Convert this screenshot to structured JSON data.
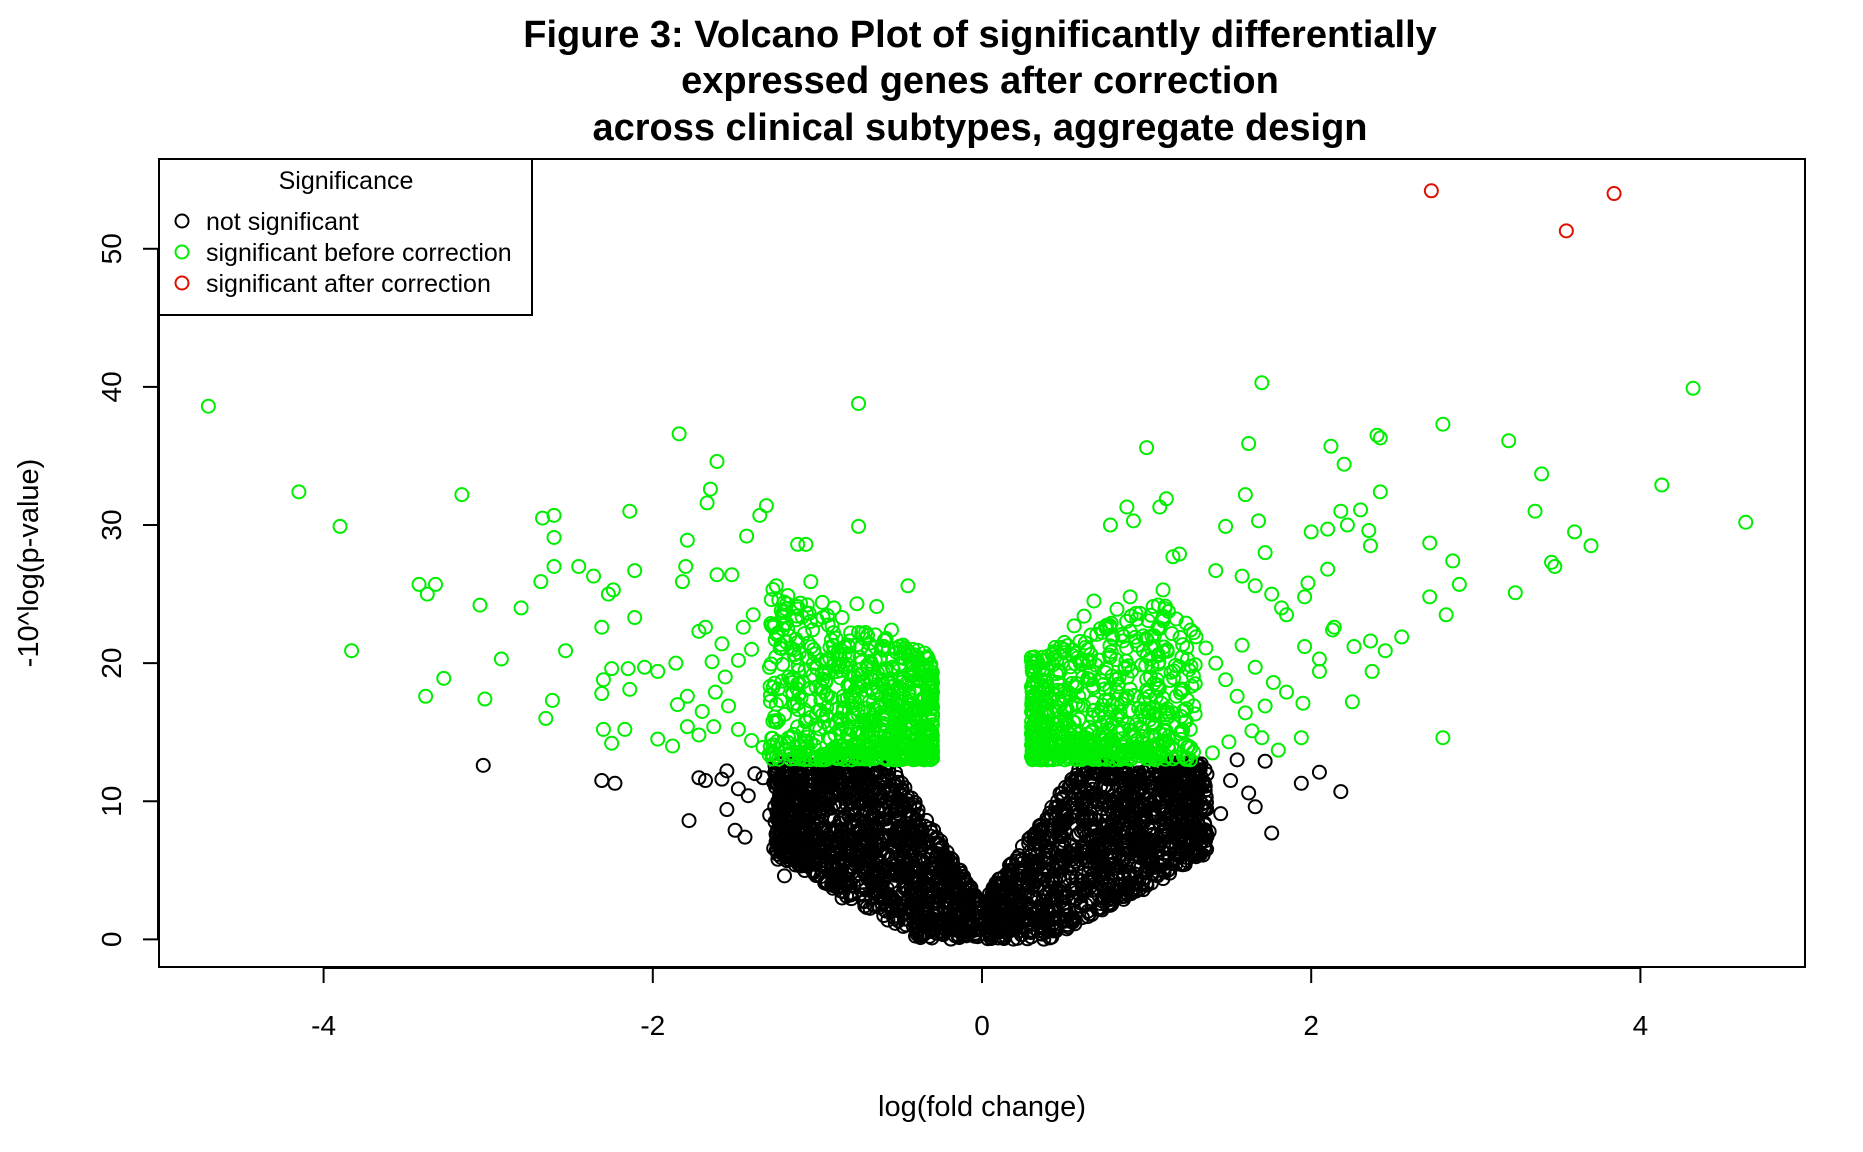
{
  "chart_data": {
    "type": "scatter",
    "title": [
      "Figure 3: Volcano Plot of significantly differentially",
      "expressed genes after correction",
      "across clinical subtypes, aggregate design"
    ],
    "xlabel": "log(fold change)",
    "ylabel": "-10^log(p-value)",
    "xlim": [
      -5.0,
      5.0
    ],
    "ylim": [
      -2.0,
      56.5
    ],
    "xticks": [
      -4,
      -2,
      0,
      2,
      4
    ],
    "yticks": [
      0,
      10,
      20,
      30,
      40,
      50
    ],
    "grid": false,
    "legend": {
      "title": "Significance",
      "position": "top-left",
      "entries": [
        {
          "label": "not significant",
          "color": "#000000"
        },
        {
          "label": "significant before correction",
          "color": "#00ee00"
        },
        {
          "label": "significant after correction",
          "color": "#dd1100"
        }
      ]
    },
    "series": [
      {
        "name": "significant after correction",
        "color": "#dd1100",
        "points": [
          [
            2.73,
            54.2
          ],
          [
            3.84,
            54.0
          ],
          [
            3.55,
            51.3
          ]
        ]
      },
      {
        "name": "significant before correction",
        "color": "#00ee00",
        "points": [
          [
            -4.7,
            38.6
          ],
          [
            -4.15,
            32.4
          ],
          [
            -3.9,
            29.9
          ],
          [
            -3.83,
            20.9
          ],
          [
            -3.42,
            25.7
          ],
          [
            -3.37,
            25.0
          ],
          [
            -3.38,
            17.6
          ],
          [
            -3.32,
            25.7
          ],
          [
            -3.27,
            18.9
          ],
          [
            -3.16,
            32.2
          ],
          [
            -3.05,
            24.2
          ],
          [
            -3.02,
            17.4
          ],
          [
            -2.92,
            20.3
          ],
          [
            -2.8,
            24.0
          ],
          [
            -2.67,
            30.5
          ],
          [
            -2.6,
            30.7
          ],
          [
            -2.6,
            29.1
          ],
          [
            -2.6,
            27.0
          ],
          [
            -2.68,
            25.9
          ],
          [
            -2.65,
            16.0
          ],
          [
            -2.61,
            17.3
          ],
          [
            -2.53,
            20.9
          ],
          [
            -2.45,
            27.0
          ],
          [
            -2.36,
            26.3
          ],
          [
            -2.31,
            22.6
          ],
          [
            -2.27,
            25.0
          ],
          [
            -2.24,
            25.3
          ],
          [
            -2.3,
            18.8
          ],
          [
            -2.31,
            17.8
          ],
          [
            -2.25,
            19.6
          ],
          [
            -2.3,
            15.2
          ],
          [
            -2.25,
            14.2
          ],
          [
            -2.17,
            15.2
          ],
          [
            -2.15,
            19.6
          ],
          [
            -2.14,
            18.1
          ],
          [
            -2.14,
            31.0
          ],
          [
            -2.11,
            26.7
          ],
          [
            -2.11,
            23.3
          ],
          [
            -2.05,
            19.7
          ],
          [
            -1.97,
            19.4
          ],
          [
            -1.97,
            14.5
          ],
          [
            -1.88,
            14.0
          ],
          [
            -1.86,
            20.0
          ],
          [
            -1.85,
            17.0
          ],
          [
            -1.84,
            36.6
          ],
          [
            -1.82,
            25.9
          ],
          [
            -1.8,
            27.0
          ],
          [
            -1.79,
            28.9
          ],
          [
            -1.79,
            17.6
          ],
          [
            -1.79,
            15.4
          ],
          [
            -1.72,
            14.8
          ],
          [
            -1.72,
            22.3
          ],
          [
            -1.68,
            22.6
          ],
          [
            -1.67,
            31.6
          ],
          [
            -1.65,
            32.6
          ],
          [
            -1.61,
            34.6
          ],
          [
            -1.61,
            26.4
          ],
          [
            -1.58,
            21.4
          ],
          [
            -1.52,
            26.4
          ],
          [
            -1.43,
            29.2
          ],
          [
            -1.35,
            30.7
          ],
          [
            -1.31,
            31.4
          ],
          [
            -1.25,
            25.6
          ],
          [
            -1.12,
            28.6
          ],
          [
            -1.07,
            28.6
          ],
          [
            -1.04,
            25.9
          ],
          [
            -0.75,
            38.8
          ],
          [
            -0.75,
            29.9
          ],
          [
            -0.45,
            25.6
          ],
          [
            1.0,
            35.6
          ],
          [
            1.12,
            31.9
          ],
          [
            1.08,
            31.3
          ],
          [
            0.88,
            31.3
          ],
          [
            0.92,
            30.3
          ],
          [
            0.78,
            30.0
          ],
          [
            1.16,
            27.7
          ],
          [
            1.2,
            27.9
          ],
          [
            1.42,
            26.7
          ],
          [
            1.6,
            32.2
          ],
          [
            1.62,
            35.9
          ],
          [
            1.7,
            40.3
          ],
          [
            1.68,
            30.3
          ],
          [
            1.72,
            28.0
          ],
          [
            1.48,
            29.9
          ],
          [
            1.58,
            26.3
          ],
          [
            1.66,
            25.6
          ],
          [
            1.76,
            25.0
          ],
          [
            1.82,
            24.0
          ],
          [
            1.85,
            23.5
          ],
          [
            1.96,
            24.8
          ],
          [
            1.98,
            25.8
          ],
          [
            2.0,
            29.5
          ],
          [
            2.1,
            29.7
          ],
          [
            2.12,
            35.7
          ],
          [
            2.18,
            31.0
          ],
          [
            2.2,
            34.4
          ],
          [
            2.22,
            30.0
          ],
          [
            2.3,
            31.1
          ],
          [
            2.35,
            29.6
          ],
          [
            2.36,
            28.5
          ],
          [
            2.4,
            36.5
          ],
          [
            2.42,
            36.3
          ],
          [
            2.42,
            32.4
          ],
          [
            2.36,
            21.6
          ],
          [
            2.37,
            19.4
          ],
          [
            2.45,
            20.9
          ],
          [
            2.55,
            21.9
          ],
          [
            2.26,
            21.2
          ],
          [
            2.25,
            17.2
          ],
          [
            2.14,
            22.6
          ],
          [
            2.1,
            26.8
          ],
          [
            2.13,
            22.4
          ],
          [
            2.05,
            20.3
          ],
          [
            2.05,
            19.4
          ],
          [
            1.96,
            21.2
          ],
          [
            1.95,
            17.1
          ],
          [
            1.94,
            14.6
          ],
          [
            1.85,
            17.9
          ],
          [
            1.8,
            13.7
          ],
          [
            2.72,
            28.7
          ],
          [
            2.72,
            24.8
          ],
          [
            2.8,
            37.3
          ],
          [
            2.86,
            27.4
          ],
          [
            2.9,
            25.7
          ],
          [
            2.82,
            23.5
          ],
          [
            2.8,
            14.6
          ],
          [
            3.2,
            36.1
          ],
          [
            3.24,
            25.1
          ],
          [
            3.36,
            31.0
          ],
          [
            3.4,
            33.7
          ],
          [
            3.46,
            27.3
          ],
          [
            3.48,
            27.0
          ],
          [
            3.6,
            29.5
          ],
          [
            3.7,
            28.5
          ],
          [
            4.13,
            32.9
          ],
          [
            4.32,
            39.9
          ],
          [
            4.64,
            30.2
          ],
          [
            -1.45,
            22.6
          ],
          [
            -1.39,
            23.5
          ],
          [
            -1.4,
            21.0
          ],
          [
            -1.48,
            20.2
          ],
          [
            -1.56,
            19.0
          ],
          [
            -1.64,
            20.1
          ],
          [
            -1.62,
            17.9
          ],
          [
            -1.7,
            16.5
          ],
          [
            -1.63,
            15.4
          ],
          [
            -1.54,
            16.9
          ],
          [
            -1.48,
            15.2
          ],
          [
            -1.4,
            14.4
          ],
          [
            -1.33,
            13.9
          ],
          [
            -1.28,
            24.6
          ],
          [
            -1.22,
            23.8
          ],
          [
            -1.18,
            24.9
          ],
          [
            -1.12,
            24.1
          ],
          [
            -1.05,
            23.6
          ],
          [
            -0.97,
            24.4
          ],
          [
            -0.9,
            24.0
          ],
          [
            -0.85,
            23.3
          ],
          [
            -0.76,
            24.3
          ],
          [
            -0.64,
            24.1
          ],
          [
            -0.55,
            22.4
          ],
          [
            -0.48,
            21.3
          ],
          [
            -0.42,
            21.0
          ],
          [
            -0.5,
            18.8
          ],
          [
            -0.45,
            17.2
          ],
          [
            -0.4,
            15.9
          ],
          [
            -0.37,
            14.6
          ],
          [
            0.32,
            14.6
          ],
          [
            0.36,
            16.4
          ],
          [
            0.4,
            18.3
          ],
          [
            0.44,
            20.4
          ],
          [
            0.5,
            21.5
          ],
          [
            0.56,
            22.7
          ],
          [
            0.62,
            23.4
          ],
          [
            0.68,
            24.5
          ],
          [
            0.75,
            22.6
          ],
          [
            0.82,
            23.9
          ],
          [
            0.9,
            24.8
          ],
          [
            0.96,
            23.6
          ],
          [
            1.04,
            24.1
          ],
          [
            1.1,
            25.3
          ],
          [
            1.18,
            23.2
          ],
          [
            1.24,
            22.9
          ],
          [
            1.3,
            21.9
          ],
          [
            1.36,
            21.1
          ],
          [
            1.42,
            20.0
          ],
          [
            1.48,
            18.8
          ],
          [
            1.55,
            17.6
          ],
          [
            1.6,
            16.4
          ],
          [
            1.64,
            15.1
          ],
          [
            1.5,
            14.3
          ],
          [
            1.4,
            13.5
          ],
          [
            1.72,
            16.9
          ],
          [
            1.77,
            18.6
          ],
          [
            1.66,
            19.7
          ],
          [
            1.58,
            21.3
          ],
          [
            1.7,
            14.6
          ]
        ]
      },
      {
        "name": "not significant",
        "color": "#000000",
        "points": [
          [
            -3.03,
            12.6
          ],
          [
            -2.31,
            11.5
          ],
          [
            -2.23,
            11.3
          ],
          [
            -1.78,
            8.6
          ],
          [
            -1.72,
            11.7
          ],
          [
            -1.68,
            11.5
          ],
          [
            -1.58,
            11.6
          ],
          [
            -1.55,
            9.4
          ],
          [
            -1.5,
            7.9
          ],
          [
            -1.44,
            7.4
          ],
          [
            -1.42,
            10.4
          ],
          [
            -1.38,
            12.0
          ],
          [
            -1.33,
            11.7
          ],
          [
            -1.29,
            9.0
          ],
          [
            -1.24,
            5.8
          ],
          [
            -1.2,
            4.6
          ],
          [
            -1.16,
            7.0
          ],
          [
            -1.12,
            6.1
          ],
          [
            -1.05,
            8.2
          ],
          [
            -0.95,
            4.1
          ],
          [
            -0.85,
            3.0
          ],
          [
            -0.7,
            2.3
          ],
          [
            -1.55,
            12.2
          ],
          [
            -1.48,
            10.9
          ],
          [
            1.55,
            13.0
          ],
          [
            1.62,
            10.6
          ],
          [
            1.66,
            9.6
          ],
          [
            1.72,
            12.9
          ],
          [
            1.76,
            7.7
          ],
          [
            1.51,
            11.5
          ],
          [
            1.45,
            9.1
          ],
          [
            1.38,
            7.8
          ],
          [
            1.32,
            6.1
          ],
          [
            1.22,
            5.4
          ],
          [
            1.1,
            4.4
          ],
          [
            0.98,
            3.6
          ],
          [
            0.86,
            2.9
          ],
          [
            0.72,
            2.6
          ],
          [
            1.94,
            11.3
          ],
          [
            2.05,
            12.1
          ],
          [
            2.18,
            10.7
          ],
          [
            1.27,
            8.8
          ],
          [
            1.18,
            6.7
          ],
          [
            1.03,
            5.2
          ]
        ]
      }
    ]
  }
}
